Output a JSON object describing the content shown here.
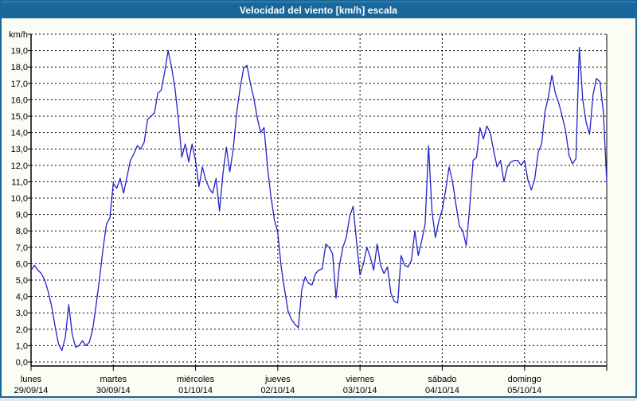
{
  "window": {
    "title": "Velocidad del viento [km/h] escala"
  },
  "colors": {
    "titlebar_bg": "#18689b",
    "window_border": "#18689b",
    "content_bg": "#fbfcf3",
    "plot_bg": "#ffffff",
    "grid": "#000000",
    "axis": "#000000",
    "line": "#2222c8",
    "title_text": "#ffffff",
    "label_text": "#000000"
  },
  "y_axis": {
    "unit_label": "km/h",
    "tick_labels": [
      "19,0",
      "18,0",
      "17,0",
      "16,0",
      "15,0",
      "14,0",
      "13,0",
      "12,0",
      "11,0",
      "10,0",
      "9,0",
      "8,0",
      "7,0",
      "6,0",
      "5,0",
      "4,0",
      "3,0",
      "2,0",
      "1,0",
      "0,0"
    ],
    "min": 0,
    "max": 20
  },
  "x_axis": {
    "days": [
      {
        "name": "lunes",
        "date": "29/09/14"
      },
      {
        "name": "martes",
        "date": "30/09/14"
      },
      {
        "name": "miércoles",
        "date": "01/10/14"
      },
      {
        "name": "jueves",
        "date": "02/10/14"
      },
      {
        "name": "viernes",
        "date": "03/10/14"
      },
      {
        "name": "sábado",
        "date": "04/10/14"
      },
      {
        "name": "domingo",
        "date": "05/10/14"
      }
    ]
  },
  "chart_data": {
    "type": "line",
    "title": "Velocidad del viento [km/h] escala",
    "ylabel": "km/h",
    "ylim": [
      0,
      20
    ],
    "grid": true,
    "x_categories": [
      "lunes 29/09/14",
      "martes 30/09/14",
      "miércoles 01/10/14",
      "jueves 02/10/14",
      "viernes 03/10/14",
      "sábado 04/10/14",
      "domingo 05/10/14"
    ],
    "sampling": "approx. hourly over 7 days (values estimated from plot)",
    "series": [
      {
        "name": "Velocidad del viento [km/h]",
        "color": "#2222c8",
        "values": [
          5.6,
          5.9,
          5.6,
          5.4,
          5.0,
          4.3,
          3.4,
          2.2,
          1.1,
          0.7,
          1.5,
          3.5,
          1.7,
          0.9,
          1.0,
          1.3,
          1.0,
          1.2,
          2.0,
          3.5,
          5.1,
          6.9,
          8.4,
          8.8,
          10.9,
          10.6,
          11.2,
          10.3,
          11.3,
          12.3,
          12.7,
          13.2,
          13.0,
          13.4,
          14.8,
          15.0,
          15.2,
          16.4,
          16.6,
          17.7,
          19.0,
          18.0,
          16.7,
          14.8,
          12.5,
          13.3,
          12.2,
          13.3,
          12.3,
          10.7,
          11.9,
          11.1,
          10.6,
          10.3,
          11.2,
          9.2,
          11.5,
          13.1,
          11.6,
          13.0,
          15.2,
          16.7,
          17.9,
          18.1,
          17.0,
          16.1,
          14.9,
          14.0,
          14.3,
          11.9,
          10.1,
          8.7,
          7.9,
          5.8,
          4.4,
          3.1,
          2.6,
          2.3,
          2.1,
          4.4,
          5.2,
          4.8,
          4.7,
          5.4,
          5.6,
          5.7,
          7.2,
          7.0,
          6.6,
          3.9,
          5.9,
          7.0,
          7.6,
          8.9,
          9.5,
          7.3,
          5.3,
          6.0,
          7.0,
          6.4,
          5.6,
          7.2,
          5.9,
          5.4,
          5.8,
          4.2,
          3.7,
          3.6,
          6.5,
          5.9,
          5.8,
          6.2,
          8.0,
          6.5,
          7.4,
          8.4,
          13.2,
          9.2,
          7.6,
          8.6,
          9.3,
          10.5,
          11.9,
          11.0,
          9.6,
          8.3,
          8.0,
          7.1,
          9.4,
          12.3,
          12.5,
          14.3,
          13.6,
          14.4,
          14.0,
          12.9,
          11.9,
          12.3,
          11.0,
          11.9,
          12.2,
          12.3,
          12.3,
          12.0,
          12.3,
          11.1,
          10.5,
          11.2,
          12.8,
          13.3,
          15.3,
          16.2,
          17.5,
          16.4,
          15.8,
          15.0,
          14.1,
          12.6,
          12.1,
          12.4,
          19.2,
          16.0,
          14.6,
          13.9,
          16.3,
          17.3,
          17.1,
          15.3,
          11.0
        ]
      }
    ]
  }
}
